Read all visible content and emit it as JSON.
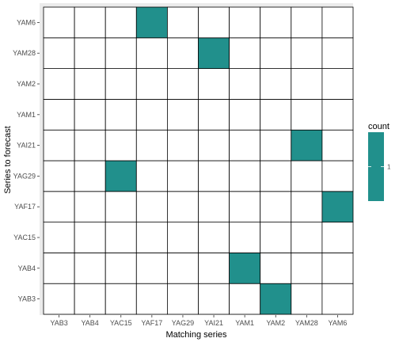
{
  "chart_data": {
    "type": "heatmap",
    "xlabel": "Matching series",
    "ylabel": "Series to forecast",
    "x_categories": [
      "YAB3",
      "YAB4",
      "YAC15",
      "YAF17",
      "YAG29",
      "YAI21",
      "YAM1",
      "YAM2",
      "YAM28",
      "YAM6"
    ],
    "y_categories": [
      "YAB3",
      "YAB4",
      "YAC15",
      "YAF17",
      "YAG29",
      "YAI21",
      "YAM1",
      "YAM2",
      "YAM28",
      "YAM6"
    ],
    "cells": [
      {
        "x": "YAF17",
        "y": "YAM6",
        "count": 1
      },
      {
        "x": "YAI21",
        "y": "YAM28",
        "count": 1
      },
      {
        "x": "YAM28",
        "y": "YAI21",
        "count": 1
      },
      {
        "x": "YAC15",
        "y": "YAG29",
        "count": 1
      },
      {
        "x": "YAM6",
        "y": "YAF17",
        "count": 1
      },
      {
        "x": "YAM1",
        "y": "YAB4",
        "count": 1
      },
      {
        "x": "YAM2",
        "y": "YAB3",
        "count": 1
      }
    ],
    "legend": {
      "title": "count",
      "breaks": [
        "1"
      ],
      "placement": "right"
    },
    "colors": {
      "fill": "#21908C",
      "panel_background": "#EBEBEB",
      "empty_cell": "#FFFFFF",
      "cell_border": "#000000"
    },
    "grid": false
  }
}
